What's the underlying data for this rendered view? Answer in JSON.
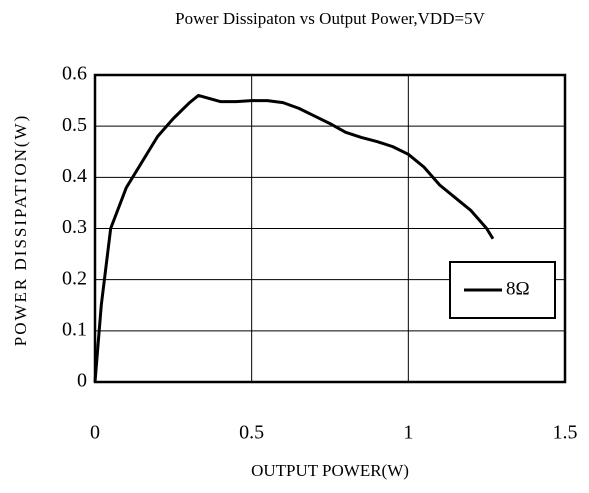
{
  "chart_data": {
    "type": "line",
    "title": "Power Dissipaton vs Output Power,VDD=5V",
    "x_label": "OUTPUT POWER(W)",
    "y_label": "POWER DISSIPATION(W)",
    "x": [
      0,
      0.02,
      0.05,
      0.1,
      0.15,
      0.2,
      0.25,
      0.3,
      0.33,
      0.36,
      0.4,
      0.45,
      0.5,
      0.55,
      0.6,
      0.65,
      0.7,
      0.75,
      0.8,
      0.85,
      0.9,
      0.95,
      1.0,
      1.05,
      1.1,
      1.15,
      1.2,
      1.25,
      1.27
    ],
    "series": [
      {
        "name": "8Ω",
        "color": "#000000",
        "values": [
          0,
          0.15,
          0.3,
          0.38,
          0.43,
          0.48,
          0.515,
          0.545,
          0.56,
          0.555,
          0.548,
          0.548,
          0.55,
          0.55,
          0.546,
          0.535,
          0.52,
          0.505,
          0.488,
          0.478,
          0.47,
          0.46,
          0.445,
          0.42,
          0.385,
          0.36,
          0.335,
          0.3,
          0.28
        ]
      }
    ],
    "xlim": [
      0,
      1.5
    ],
    "xticks": [
      0,
      0.5,
      1,
      1.5
    ],
    "ylim": [
      0,
      0.6
    ],
    "yticks": [
      0,
      0.1,
      0.2,
      0.3,
      0.4,
      0.5,
      0.6
    ],
    "grid": true,
    "legend": "right"
  }
}
